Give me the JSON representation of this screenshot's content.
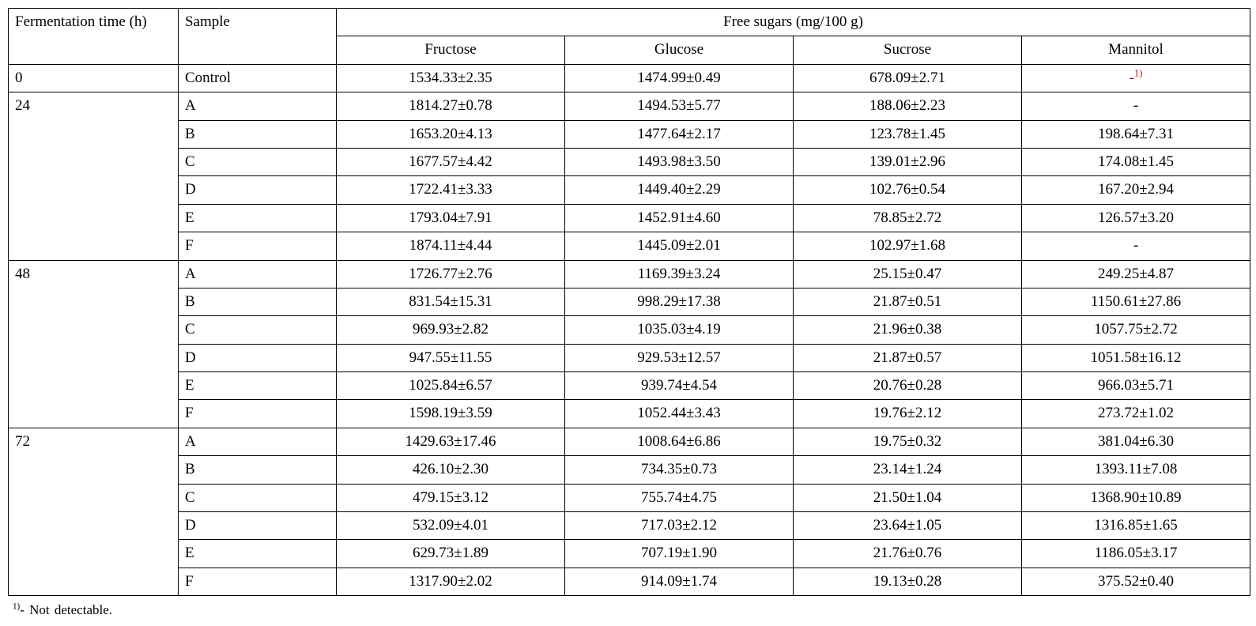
{
  "header": {
    "time": "Fermentation time (h)",
    "sample": "Sample",
    "group": "Free sugars (mg/100 g)",
    "c1": "Fructose",
    "c2": "Glucose",
    "c3": "Sucrose",
    "c4": "Mannitol"
  },
  "groups": [
    {
      "time": "0",
      "rows": [
        {
          "sample": "Control",
          "fru": "1534.33±2.35",
          "glu": "1474.99±0.49",
          "suc": "678.09±2.71",
          "man": "-",
          "man_sup": "1)",
          "man_red": true
        }
      ]
    },
    {
      "time": "24",
      "rows": [
        {
          "sample": "A",
          "fru": "1814.27±0.78",
          "glu": "1494.53±5.77",
          "suc": "188.06±2.23",
          "man": "-"
        },
        {
          "sample": "B",
          "fru": "1653.20±4.13",
          "glu": "1477.64±2.17",
          "suc": "123.78±1.45",
          "man": "198.64±7.31"
        },
        {
          "sample": "C",
          "fru": "1677.57±4.42",
          "glu": "1493.98±3.50",
          "suc": "139.01±2.96",
          "man": "174.08±1.45"
        },
        {
          "sample": "D",
          "fru": "1722.41±3.33",
          "glu": "1449.40±2.29",
          "suc": "102.76±0.54",
          "man": "167.20±2.94"
        },
        {
          "sample": "E",
          "fru": "1793.04±7.91",
          "glu": "1452.91±4.60",
          "suc": "78.85±2.72",
          "man": "126.57±3.20"
        },
        {
          "sample": "F",
          "fru": "1874.11±4.44",
          "glu": "1445.09±2.01",
          "suc": "102.97±1.68",
          "man": "-"
        }
      ]
    },
    {
      "time": "48",
      "rows": [
        {
          "sample": "A",
          "fru": "1726.77±2.76",
          "glu": "1169.39±3.24",
          "suc": "25.15±0.47",
          "man": "249.25±4.87"
        },
        {
          "sample": "B",
          "fru": "831.54±15.31",
          "glu": "998.29±17.38",
          "suc": "21.87±0.51",
          "man": "1150.61±27.86"
        },
        {
          "sample": "C",
          "fru": "969.93±2.82",
          "glu": "1035.03±4.19",
          "suc": "21.96±0.38",
          "man": "1057.75±2.72"
        },
        {
          "sample": "D",
          "fru": "947.55±11.55",
          "glu": "929.53±12.57",
          "suc": "21.87±0.57",
          "man": "1051.58±16.12"
        },
        {
          "sample": "E",
          "fru": "1025.84±6.57",
          "glu": "939.74±4.54",
          "suc": "20.76±0.28",
          "man": "966.03±5.71"
        },
        {
          "sample": "F",
          "fru": "1598.19±3.59",
          "glu": "1052.44±3.43",
          "suc": "19.76±2.12",
          "man": "273.72±1.02"
        }
      ]
    },
    {
      "time": "72",
      "rows": [
        {
          "sample": "A",
          "fru": "1429.63±17.46",
          "glu": "1008.64±6.86",
          "suc": "19.75±0.32",
          "man": "381.04±6.30"
        },
        {
          "sample": "B",
          "fru": "426.10±2.30",
          "glu": "734.35±0.73",
          "suc": "23.14±1.24",
          "man": "1393.11±7.08"
        },
        {
          "sample": "C",
          "fru": "479.15±3.12",
          "glu": "755.74±4.75",
          "suc": "21.50±1.04",
          "man": "1368.90±10.89"
        },
        {
          "sample": "D",
          "fru": "532.09±4.01",
          "glu": "717.03±2.12",
          "suc": "23.64±1.05",
          "man": "1316.85±1.65"
        },
        {
          "sample": "E",
          "fru": "629.73±1.89",
          "glu": "707.19±1.90",
          "suc": "21.76±0.76",
          "man": "1186.05±3.17"
        },
        {
          "sample": "F",
          "fru": "1317.90±2.02",
          "glu": "914.09±1.74",
          "suc": "19.13±0.28",
          "man": "375.52±0.40"
        }
      ]
    }
  ],
  "footnote": {
    "sup": "1)",
    "text": "- Not detectable."
  }
}
